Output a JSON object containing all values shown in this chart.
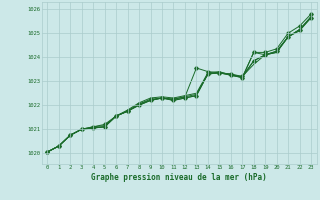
{
  "x": [
    0,
    1,
    2,
    3,
    4,
    5,
    6,
    7,
    8,
    9,
    10,
    11,
    12,
    13,
    14,
    15,
    16,
    17,
    18,
    19,
    20,
    21,
    22,
    23
  ],
  "line1": [
    1020.05,
    1020.3,
    1020.75,
    1021.0,
    1021.05,
    1021.1,
    1021.55,
    1021.75,
    1022.0,
    1022.2,
    1022.3,
    1022.2,
    1022.3,
    1022.4,
    1023.3,
    1023.35,
    1023.3,
    1023.2,
    1023.85,
    1024.1,
    1024.25,
    1024.85,
    1025.15,
    1025.65
  ],
  "line2": [
    1020.05,
    1020.3,
    1020.75,
    1021.0,
    1021.1,
    1021.2,
    1021.55,
    1021.75,
    1022.05,
    1022.25,
    1022.3,
    1022.25,
    1022.35,
    1023.55,
    1023.4,
    1023.35,
    1023.25,
    1023.15,
    1024.2,
    1024.2,
    1024.35,
    1025.0,
    1025.3,
    1025.8
  ],
  "line3": [
    1020.05,
    1020.3,
    1020.75,
    1021.0,
    1021.1,
    1021.15,
    1021.55,
    1021.8,
    1022.1,
    1022.3,
    1022.35,
    1022.3,
    1022.4,
    1022.5,
    1023.35,
    1023.4,
    1023.25,
    1023.2,
    1023.7,
    1024.1,
    1024.2,
    1024.85,
    1025.15,
    1025.7
  ],
  "line4": [
    1020.05,
    1020.3,
    1020.75,
    1021.0,
    1021.05,
    1021.1,
    1021.55,
    1021.75,
    1022.0,
    1022.2,
    1022.3,
    1022.2,
    1022.3,
    1022.4,
    1023.3,
    1023.35,
    1023.3,
    1023.15,
    1024.2,
    1024.1,
    1024.25,
    1024.85,
    1025.15,
    1025.65
  ],
  "line5": [
    1020.05,
    1020.3,
    1020.75,
    1021.0,
    1021.05,
    1021.1,
    1021.55,
    1021.75,
    1022.05,
    1022.2,
    1022.3,
    1022.25,
    1022.35,
    1022.45,
    1023.3,
    1023.35,
    1023.25,
    1023.15,
    1023.85,
    1024.1,
    1024.2,
    1024.85,
    1025.1,
    1025.65
  ],
  "bg_color": "#cce8e8",
  "grid_color": "#aacccc",
  "line_color": "#1a6b2a",
  "marker_color": "#1a6b2a",
  "xlabel": "Graphe pression niveau de la mer (hPa)",
  "yticks": [
    1020,
    1021,
    1022,
    1023,
    1024,
    1025,
    1026
  ],
  "xticks": [
    0,
    1,
    2,
    3,
    4,
    5,
    6,
    7,
    8,
    9,
    10,
    11,
    12,
    13,
    14,
    15,
    16,
    17,
    18,
    19,
    20,
    21,
    22,
    23
  ],
  "ylim": [
    1019.55,
    1026.3
  ],
  "xlim": [
    -0.5,
    23.5
  ]
}
